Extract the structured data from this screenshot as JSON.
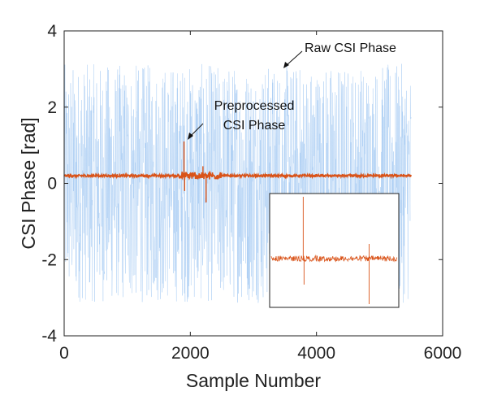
{
  "chart_data": {
    "type": "line",
    "title": "",
    "xlabel": "Sample Number",
    "ylabel": "CSI Phase [rad]",
    "xlim": [
      0,
      6000
    ],
    "ylim": [
      -4,
      4
    ],
    "xticks": [
      0,
      2000,
      4000,
      6000
    ],
    "yticks": [
      -4,
      -2,
      0,
      2,
      4
    ],
    "xtick_labels": [
      "0",
      "2000",
      "4000",
      "6000"
    ],
    "ytick_labels": [
      "-4",
      "-2",
      "0",
      "2",
      "4"
    ],
    "grid": false,
    "series": [
      {
        "name": "Raw CSI Phase",
        "color": "#a9cdf3",
        "range": [
          -3.14,
          3.14
        ],
        "x_range": [
          0,
          5500
        ]
      },
      {
        "name": "Preprocessed CSI Phase",
        "color": "#d95319",
        "baseline": 0.2,
        "x_range": [
          0,
          5500
        ],
        "spikes": [
          {
            "x": 1900,
            "y": 1.1
          },
          {
            "x": 1910,
            "y": -0.2
          },
          {
            "x": 2250,
            "y": -0.5
          },
          {
            "x": 2200,
            "y": 0.45
          }
        ]
      }
    ],
    "annotations": [
      {
        "text": [
          "Raw CSI Phase"
        ],
        "x": 3300,
        "y": 3.2
      },
      {
        "text": [
          "Preprocessed",
          "CSI Phase"
        ],
        "x": 1900,
        "y": 1.1
      }
    ],
    "inset": {
      "description_series": "Preprocessed CSI Phase",
      "spikes_rel": [
        0.26,
        0.77
      ]
    }
  }
}
